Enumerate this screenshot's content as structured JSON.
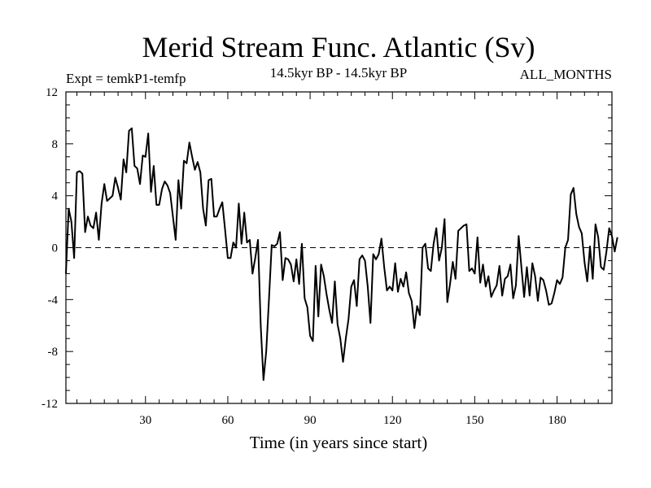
{
  "chart_data": {
    "type": "line",
    "title": "Merid Stream Func. Atlantic (Sv)",
    "subtitle": "14.5kyr BP - 14.5kyr BP",
    "left_label": "Expt = temkP1-temfp",
    "right_label": "ALL_MONTHS",
    "xlabel": "Time (in years since start)",
    "ylabel": "",
    "xlim": [
      1,
      200
    ],
    "ylim": [
      -12,
      12
    ],
    "x_ticks": [
      30,
      60,
      90,
      120,
      150,
      180
    ],
    "y_ticks": [
      -12,
      -8,
      -4,
      0,
      4,
      8,
      12
    ],
    "y_tick_labels": [
      "-12",
      "-8",
      "-4",
      "0",
      "4",
      "8",
      "12"
    ],
    "reference_line": 0,
    "series": [
      {
        "name": "temkP1-temfp",
        "x_start": 1,
        "x_step": 1,
        "values": [
          -2.0,
          3.0,
          2.0,
          -0.8,
          5.8,
          5.9,
          5.7,
          1.2,
          2.4,
          1.7,
          1.5,
          2.7,
          0.6,
          3.4,
          4.9,
          3.6,
          3.8,
          4.0,
          5.4,
          4.6,
          3.7,
          6.8,
          5.8,
          9.0,
          9.2,
          6.3,
          6.1,
          4.9,
          7.1,
          7.0,
          8.8,
          4.3,
          6.3,
          3.3,
          3.3,
          4.5,
          5.1,
          4.8,
          4.2,
          2.4,
          0.6,
          5.2,
          3.0,
          6.7,
          6.5,
          8.1,
          7.0,
          6.0,
          6.6,
          5.8,
          3.0,
          1.7,
          5.2,
          5.3,
          2.4,
          2.4,
          3.0,
          3.5,
          1.4,
          -0.8,
          -0.8,
          0.4,
          0.0,
          3.4,
          0.3,
          2.7,
          0.4,
          0.6,
          -2.0,
          -0.8,
          0.6,
          -6.0,
          -10.2,
          -8.0,
          -4.0,
          0.2,
          0.1,
          0.3,
          1.2,
          -2.5,
          -0.8,
          -0.9,
          -1.3,
          -2.6,
          -0.9,
          -2.8,
          0.3,
          -3.9,
          -4.6,
          -6.8,
          -7.2,
          -1.4,
          -5.3,
          -1.3,
          -2.2,
          -3.6,
          -4.8,
          -5.8,
          -2.6,
          -5.9,
          -7.0,
          -8.8,
          -7.0,
          -5.5,
          -3.0,
          -2.5,
          -4.5,
          -0.9,
          -0.6,
          -1.0,
          -3.0,
          -5.8,
          -0.5,
          -0.9,
          -0.5,
          0.7,
          -1.5,
          -3.3,
          -3.0,
          -3.3,
          -1.2,
          -3.4,
          -2.4,
          -3.0,
          -1.9,
          -3.5,
          -4.1,
          -6.2,
          -4.5,
          -5.2,
          0.0,
          0.3,
          -1.6,
          -1.8,
          0.3,
          1.5,
          -1.0,
          0.0,
          2.2,
          -4.2,
          -2.8,
          -1.1,
          -2.4,
          1.3,
          1.5,
          1.7,
          1.8,
          -1.8,
          -1.6,
          -2.0,
          0.8,
          -2.7,
          -1.3,
          -3.0,
          -2.2,
          -3.8,
          -3.3,
          -2.9,
          -1.4,
          -3.7,
          -2.4,
          -2.2,
          -1.3,
          -3.9,
          -2.9,
          0.9,
          -1.5,
          -3.8,
          -1.5,
          -3.7,
          -1.2,
          -2.2,
          -4.1,
          -2.3,
          -2.5,
          -3.3,
          -4.4,
          -4.3,
          -3.5,
          -2.5,
          -2.8,
          -2.3,
          0.0,
          0.6,
          4.1,
          4.6,
          2.6,
          1.6,
          1.1,
          -1.1,
          -2.6,
          0.1,
          -2.4,
          1.8,
          0.8,
          -1.5,
          -1.7,
          -0.3,
          1.5,
          0.9,
          -0.3,
          0.8
        ]
      }
    ]
  }
}
